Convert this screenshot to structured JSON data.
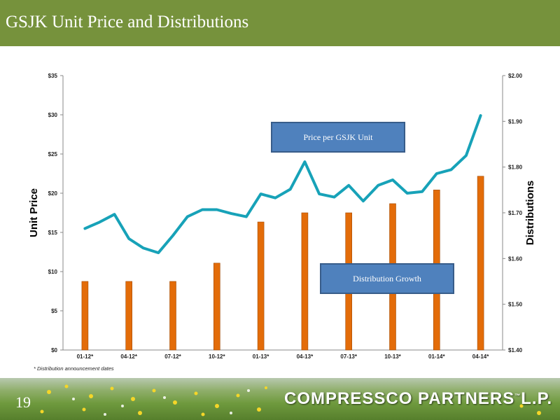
{
  "slide": {
    "title": "GSJK Unit Price and Distributions",
    "page_number": "19",
    "brand": "COMPRESSCO PARTNERS",
    "brand_tm": "L.P.",
    "footnote": "* Distribution announcement dates"
  },
  "colors": {
    "header": "#76923c",
    "bars": "#e36c09",
    "line": "#17a2b8",
    "callout": "#4f81bd"
  },
  "chart_data": {
    "type": "bar+line",
    "categories": [
      "01-12*",
      "04-12*",
      "07-12*",
      "10-12*",
      "01-13*",
      "04-13*",
      "07-13*",
      "10-13*",
      "01-14*",
      "04-14*"
    ],
    "left_axis": {
      "label": "Unit Price",
      "min": 0,
      "max": 35,
      "ticks": [
        "$0",
        "$5",
        "$10",
        "$15",
        "$20",
        "$25",
        "$30",
        "$35"
      ]
    },
    "right_axis": {
      "label": "Distributions",
      "min": 1.4,
      "max": 2.0,
      "ticks": [
        "$1.40",
        "$1.50",
        "$1.60",
        "$1.70",
        "$1.80",
        "$1.90",
        "$2.00"
      ]
    },
    "bars": {
      "name": "Distribution Growth",
      "values": [
        1.55,
        1.55,
        1.55,
        1.59,
        1.68,
        1.7,
        1.7,
        1.72,
        1.75,
        1.78
      ]
    },
    "line": {
      "name": "Price per GSJK Unit",
      "x": [
        0,
        0.33,
        0.67,
        1,
        1.33,
        1.67,
        2,
        2.33,
        2.67,
        3,
        3.33,
        3.67,
        4,
        4.33,
        4.67,
        5,
        5.33,
        5.67,
        6,
        6.33,
        6.67,
        7,
        7.33,
        7.67,
        8,
        8.33,
        8.67,
        9
      ],
      "values": [
        15.5,
        16.3,
        17.3,
        14.2,
        13.0,
        12.4,
        14.6,
        17.0,
        17.9,
        17.9,
        17.4,
        17.0,
        19.9,
        19.4,
        20.5,
        24.0,
        19.9,
        19.5,
        21.0,
        19.0,
        21.0,
        21.7,
        20.0,
        20.2,
        22.5,
        23.0,
        24.8,
        29.9
      ]
    },
    "callouts": [
      "Price per GSJK Unit",
      "Distribution Growth"
    ]
  }
}
